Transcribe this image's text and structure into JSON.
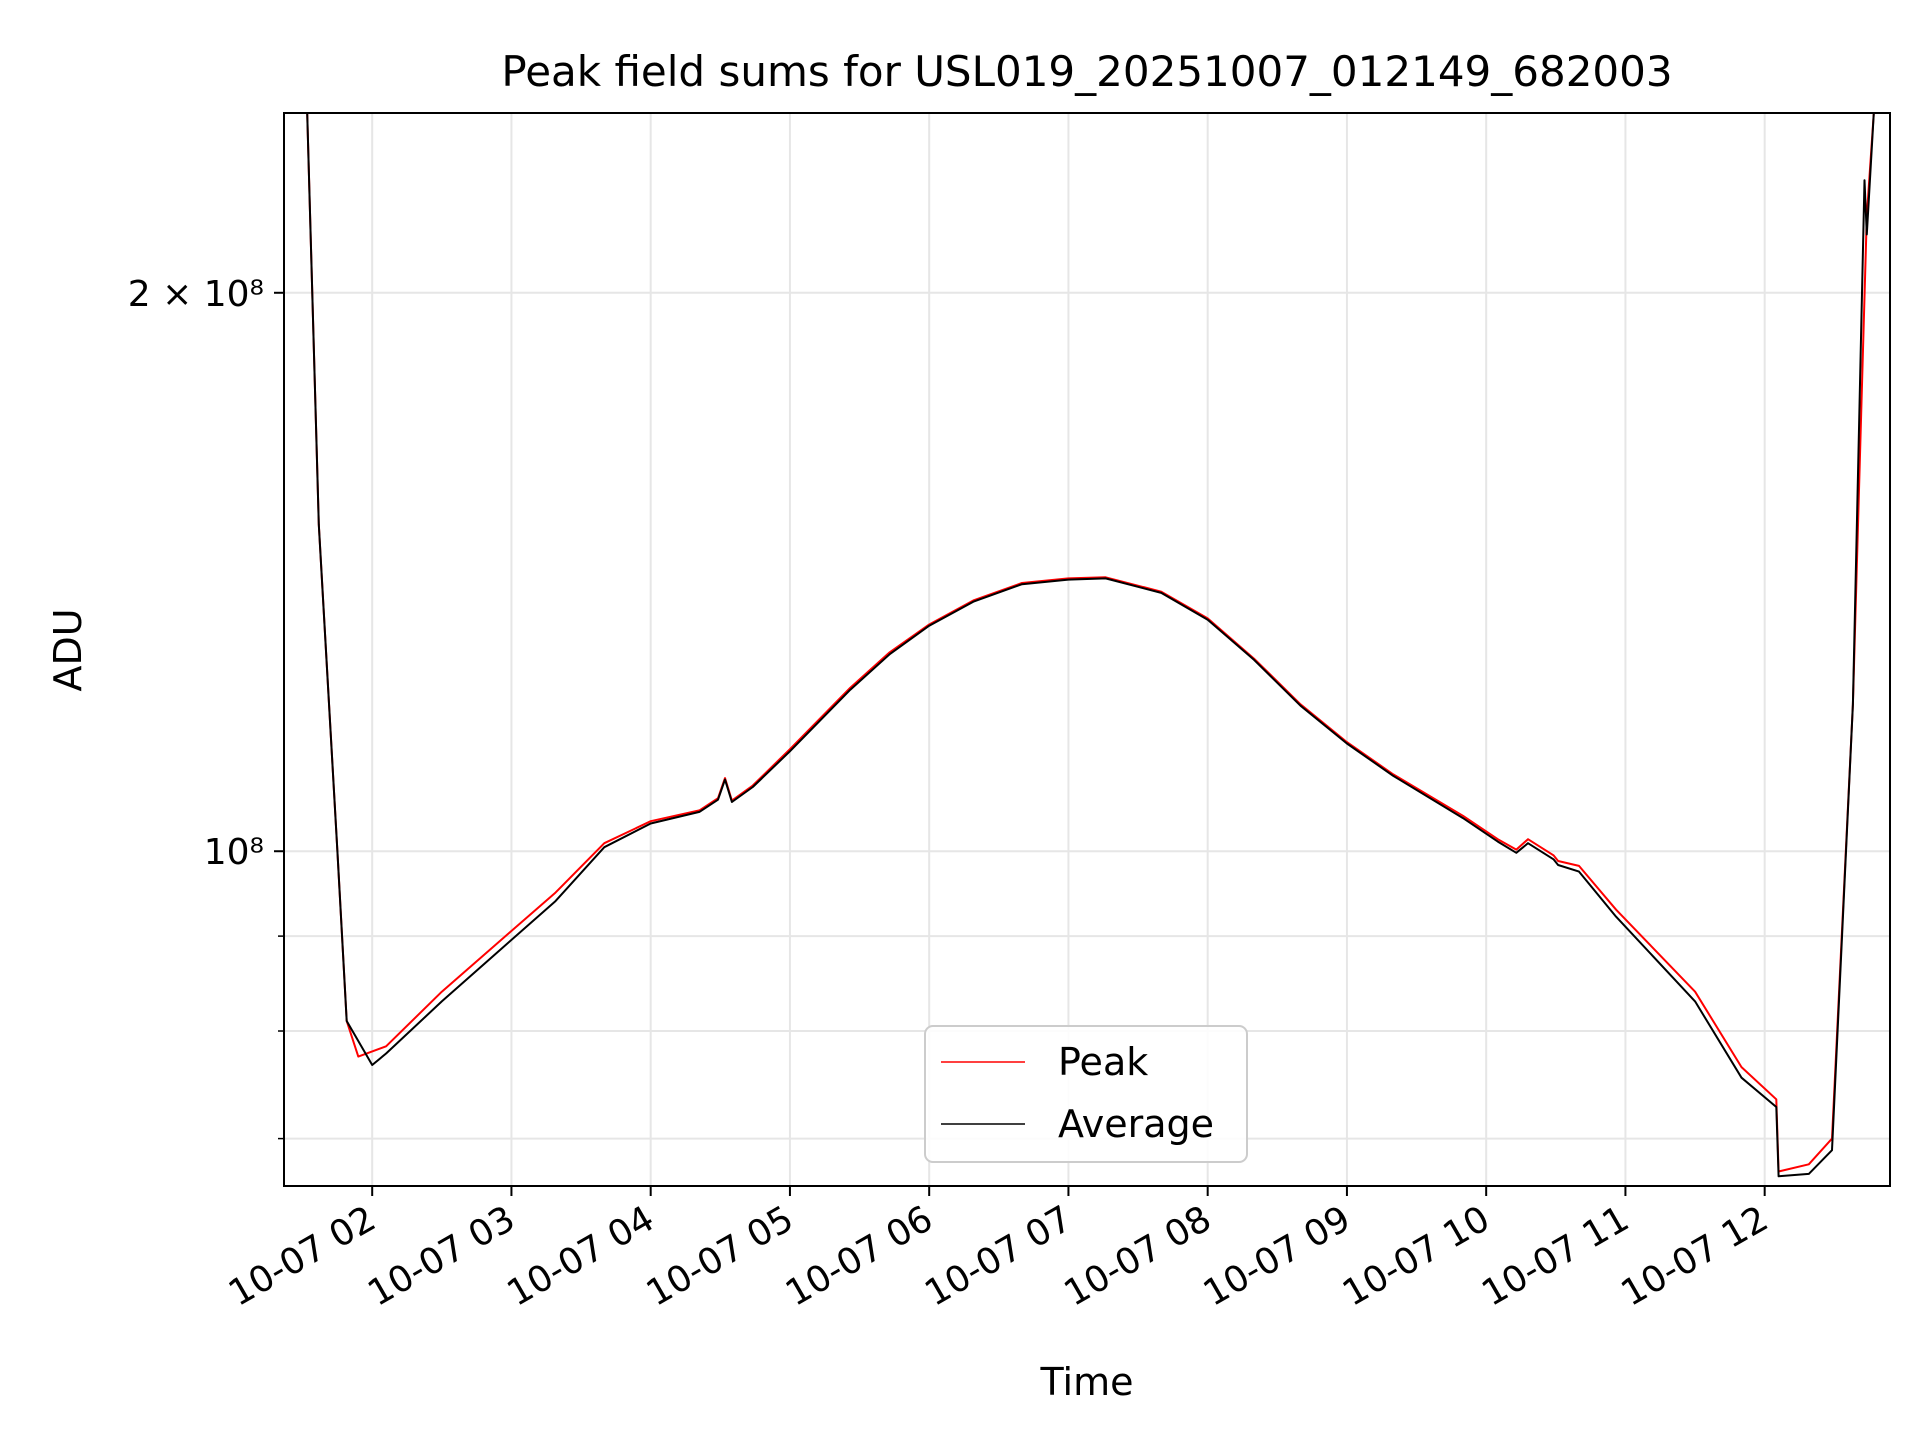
{
  "chart_data": {
    "type": "line",
    "title": "Peak field sums for USL019_20251007_012149_682003",
    "xlabel": "Time",
    "ylabel": "ADU",
    "yscale": "log",
    "ylim": [
      66000000,
      250000000
    ],
    "xlim": [
      "2025-10-07 01:22",
      "2025-10-07 12:54"
    ],
    "grid": true,
    "legend_position": "lower center",
    "x_ticks": [
      {
        "time": "2025-10-07 02:00",
        "label": "10-07 02"
      },
      {
        "time": "2025-10-07 03:00",
        "label": "10-07 03"
      },
      {
        "time": "2025-10-07 04:00",
        "label": "10-07 04"
      },
      {
        "time": "2025-10-07 05:00",
        "label": "10-07 05"
      },
      {
        "time": "2025-10-07 06:00",
        "label": "10-07 06"
      },
      {
        "time": "2025-10-07 07:00",
        "label": "10-07 07"
      },
      {
        "time": "2025-10-07 08:00",
        "label": "10-07 08"
      },
      {
        "time": "2025-10-07 09:00",
        "label": "10-07 09"
      },
      {
        "time": "2025-10-07 10:00",
        "label": "10-07 10"
      },
      {
        "time": "2025-10-07 11:00",
        "label": "10-07 11"
      },
      {
        "time": "2025-10-07 12:00",
        "label": "10-07 12"
      }
    ],
    "y_ticks": [
      {
        "value": 200000000,
        "label": "2 × 10⁸"
      },
      {
        "value": 100000000,
        "label": "10⁸"
      }
    ],
    "y_minor_ticks": [
      70000000,
      80000000,
      90000000
    ],
    "series": [
      {
        "name": "Peak",
        "color": "#ff0000",
        "points": [
          [
            "2025-10-07 01:32",
            250000000
          ],
          [
            "2025-10-07 01:37",
            150000000
          ],
          [
            "2025-10-07 01:45",
            100000000
          ],
          [
            "2025-10-07 01:49",
            81000000
          ],
          [
            "2025-10-07 01:54",
            77500000
          ],
          [
            "2025-10-07 02:06",
            78500000
          ],
          [
            "2025-10-07 02:30",
            84000000
          ],
          [
            "2025-10-07 02:53",
            89000000
          ],
          [
            "2025-10-07 03:19",
            95000000
          ],
          [
            "2025-10-07 03:40",
            101000000
          ],
          [
            "2025-10-07 04:00",
            103800000
          ],
          [
            "2025-10-07 04:21",
            105200000
          ],
          [
            "2025-10-07 04:29",
            106800000
          ],
          [
            "2025-10-07 04:32",
            109500000
          ],
          [
            "2025-10-07 04:35",
            106500000
          ],
          [
            "2025-10-07 04:44",
            108500000
          ],
          [
            "2025-10-07 05:00",
            113500000
          ],
          [
            "2025-10-07 05:26",
            122500000
          ],
          [
            "2025-10-07 05:43",
            128000000
          ],
          [
            "2025-10-07 06:00",
            132500000
          ],
          [
            "2025-10-07 06:19",
            136500000
          ],
          [
            "2025-10-07 06:40",
            139500000
          ],
          [
            "2025-10-07 07:00",
            140300000
          ],
          [
            "2025-10-07 07:16",
            140500000
          ],
          [
            "2025-10-07 07:40",
            138000000
          ],
          [
            "2025-10-07 08:00",
            133500000
          ],
          [
            "2025-10-07 08:20",
            127000000
          ],
          [
            "2025-10-07 08:40",
            120000000
          ],
          [
            "2025-10-07 09:00",
            114500000
          ],
          [
            "2025-10-07 09:20",
            110000000
          ],
          [
            "2025-10-07 09:50",
            104500000
          ],
          [
            "2025-10-07 10:05",
            101500000
          ],
          [
            "2025-10-07 10:13",
            100200000
          ],
          [
            "2025-10-07 10:18",
            101500000
          ],
          [
            "2025-10-07 10:29",
            99500000
          ],
          [
            "2025-10-07 10:31",
            98800000
          ],
          [
            "2025-10-07 10:40",
            98200000
          ],
          [
            "2025-10-07 10:56",
            93000000
          ],
          [
            "2025-10-07 11:30",
            84000000
          ],
          [
            "2025-10-07 11:50",
            76500000
          ],
          [
            "2025-10-07 12:05",
            73500000
          ],
          [
            "2025-10-07 12:06",
            67200000
          ],
          [
            "2025-10-07 12:19",
            67800000
          ],
          [
            "2025-10-07 12:29",
            70000000
          ],
          [
            "2025-10-07 12:38",
            120000000
          ],
          [
            "2025-10-07 12:44",
            220000000
          ],
          [
            "2025-10-07 12:47",
            250000000
          ]
        ]
      },
      {
        "name": "Average",
        "color": "#000000",
        "points": [
          [
            "2025-10-07 01:32",
            250000000
          ],
          [
            "2025-10-07 01:37",
            150000000
          ],
          [
            "2025-10-07 01:45",
            100000000
          ],
          [
            "2025-10-07 01:49",
            81000000
          ],
          [
            "2025-10-07 02:00",
            76700000
          ],
          [
            "2025-10-07 02:06",
            77800000
          ],
          [
            "2025-10-07 02:30",
            83000000
          ],
          [
            "2025-10-07 02:53",
            88000000
          ],
          [
            "2025-10-07 03:19",
            94000000
          ],
          [
            "2025-10-07 03:40",
            100500000
          ],
          [
            "2025-10-07 04:00",
            103500000
          ],
          [
            "2025-10-07 04:21",
            105000000
          ],
          [
            "2025-10-07 04:29",
            106600000
          ],
          [
            "2025-10-07 04:32",
            109300000
          ],
          [
            "2025-10-07 04:35",
            106300000
          ],
          [
            "2025-10-07 04:44",
            108300000
          ],
          [
            "2025-10-07 05:00",
            113200000
          ],
          [
            "2025-10-07 05:26",
            122200000
          ],
          [
            "2025-10-07 05:43",
            127700000
          ],
          [
            "2025-10-07 06:00",
            132300000
          ],
          [
            "2025-10-07 06:19",
            136300000
          ],
          [
            "2025-10-07 06:40",
            139300000
          ],
          [
            "2025-10-07 07:00",
            140100000
          ],
          [
            "2025-10-07 07:16",
            140300000
          ],
          [
            "2025-10-07 07:40",
            137800000
          ],
          [
            "2025-10-07 08:00",
            133300000
          ],
          [
            "2025-10-07 08:20",
            126800000
          ],
          [
            "2025-10-07 08:40",
            119800000
          ],
          [
            "2025-10-07 09:00",
            114300000
          ],
          [
            "2025-10-07 09:20",
            109800000
          ],
          [
            "2025-10-07 09:50",
            104200000
          ],
          [
            "2025-10-07 10:05",
            101200000
          ],
          [
            "2025-10-07 10:13",
            99800000
          ],
          [
            "2025-10-07 10:18",
            101000000
          ],
          [
            "2025-10-07 10:29",
            99000000
          ],
          [
            "2025-10-07 10:31",
            98300000
          ],
          [
            "2025-10-07 10:40",
            97500000
          ],
          [
            "2025-10-07 10:56",
            92200000
          ],
          [
            "2025-10-07 11:30",
            83000000
          ],
          [
            "2025-10-07 11:50",
            75500000
          ],
          [
            "2025-10-07 12:05",
            72800000
          ],
          [
            "2025-10-07 12:06",
            66800000
          ],
          [
            "2025-10-07 12:19",
            67000000
          ],
          [
            "2025-10-07 12:29",
            69000000
          ],
          [
            "2025-10-07 12:38",
            120000000
          ],
          [
            "2025-10-07 12:43",
            230000000
          ],
          [
            "2025-10-07 12:44",
            215000000
          ],
          [
            "2025-10-07 12:47",
            250000000
          ]
        ]
      }
    ]
  }
}
